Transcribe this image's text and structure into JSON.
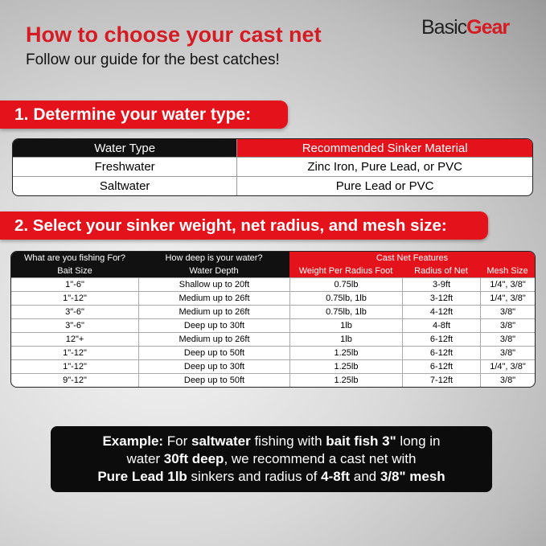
{
  "header": {
    "title": "How to choose your cast net",
    "subtitle": "Follow our guide for the best catches!",
    "logo": [
      "Basic",
      "Gear"
    ]
  },
  "section1": {
    "heading": "1. Determine your water type:",
    "columns": [
      "Water Type",
      "Recommended Sinker Material"
    ],
    "rows": [
      [
        "Freshwater",
        "Zinc Iron, Pure Lead, or PVC"
      ],
      [
        "Saltwater",
        "Pure Lead or PVC"
      ]
    ]
  },
  "section2": {
    "heading": "2. Select your sinker weight, net radius, and mesh size:",
    "groups": [
      "What are you fishing For?",
      "How deep is your water?",
      "Cast Net Features"
    ],
    "columns": [
      "Bait Size",
      "Water Depth",
      "Weight Per Radius Foot",
      "Radius of Net",
      "Mesh Size"
    ],
    "rows": [
      [
        "1\"-6\"",
        "Shallow up to 20ft",
        "0.75lb",
        "3-9ft",
        "1/4\", 3/8\""
      ],
      [
        "1\"-12\"",
        "Medium up to 26ft",
        "0.75lb, 1lb",
        "3-12ft",
        "1/4\", 3/8\""
      ],
      [
        "3\"-6\"",
        "Medium up to 26ft",
        "0.75lb, 1lb",
        "4-12ft",
        "3/8\""
      ],
      [
        "3\"-6\"",
        "Deep up to 30ft",
        "1lb",
        "4-8ft",
        "3/8\""
      ],
      [
        "12\"+",
        "Medium up to 26ft",
        "1lb",
        "6-12ft",
        "3/8\""
      ],
      [
        "1\"-12\"",
        "Deep up to 50ft",
        "1.25lb",
        "6-12ft",
        "3/8\""
      ],
      [
        "1\"-12\"",
        "Deep up to 30ft",
        "1.25lb",
        "6-12ft",
        "1/4\", 3/8\""
      ],
      [
        "9\"-12\"",
        "Deep up to 50ft",
        "1.25lb",
        "7-12ft",
        "3/8\""
      ]
    ]
  },
  "example": {
    "lines": [
      [
        {
          "text": "Example:",
          "bold": true
        },
        {
          "text": " For ",
          "bold": false
        },
        {
          "text": "saltwater",
          "bold": true
        },
        {
          "text": " fishing with ",
          "bold": false
        },
        {
          "text": "bait fish 3\"",
          "bold": true
        },
        {
          "text": " long in",
          "bold": false
        }
      ],
      [
        {
          "text": "water ",
          "bold": false
        },
        {
          "text": "30ft deep",
          "bold": true
        },
        {
          "text": ", we recommend a cast net with",
          "bold": false
        }
      ],
      [
        {
          "text": "Pure Lead 1lb",
          "bold": true
        },
        {
          "text": " sinkers and radius of ",
          "bold": false
        },
        {
          "text": "4-8ft",
          "bold": true
        },
        {
          "text": " and ",
          "bold": false
        },
        {
          "text": "3/8\" mesh",
          "bold": true
        }
      ]
    ]
  }
}
